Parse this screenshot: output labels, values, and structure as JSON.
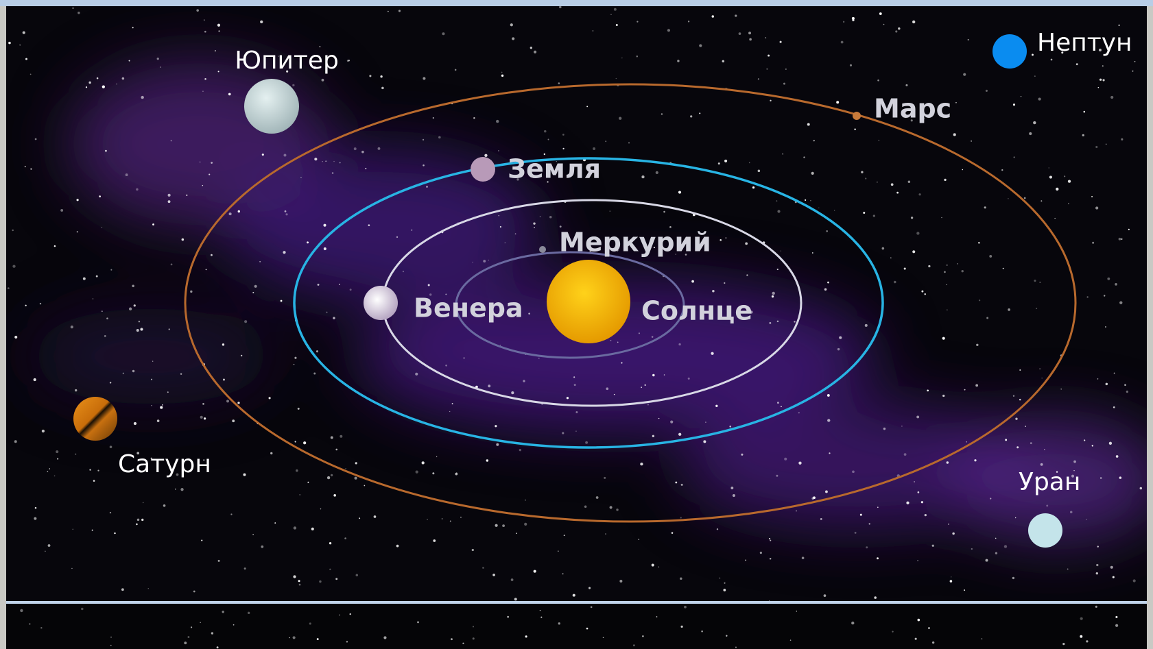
{
  "bodies": {
    "sun": "Солнце",
    "mercury": "Меркурий",
    "venus": "Венера",
    "earth": "Земля",
    "mars": "Марс",
    "jupiter": "Юпитер",
    "saturn": "Сатурн",
    "uranus": "Уран",
    "neptune": "Нептун"
  }
}
